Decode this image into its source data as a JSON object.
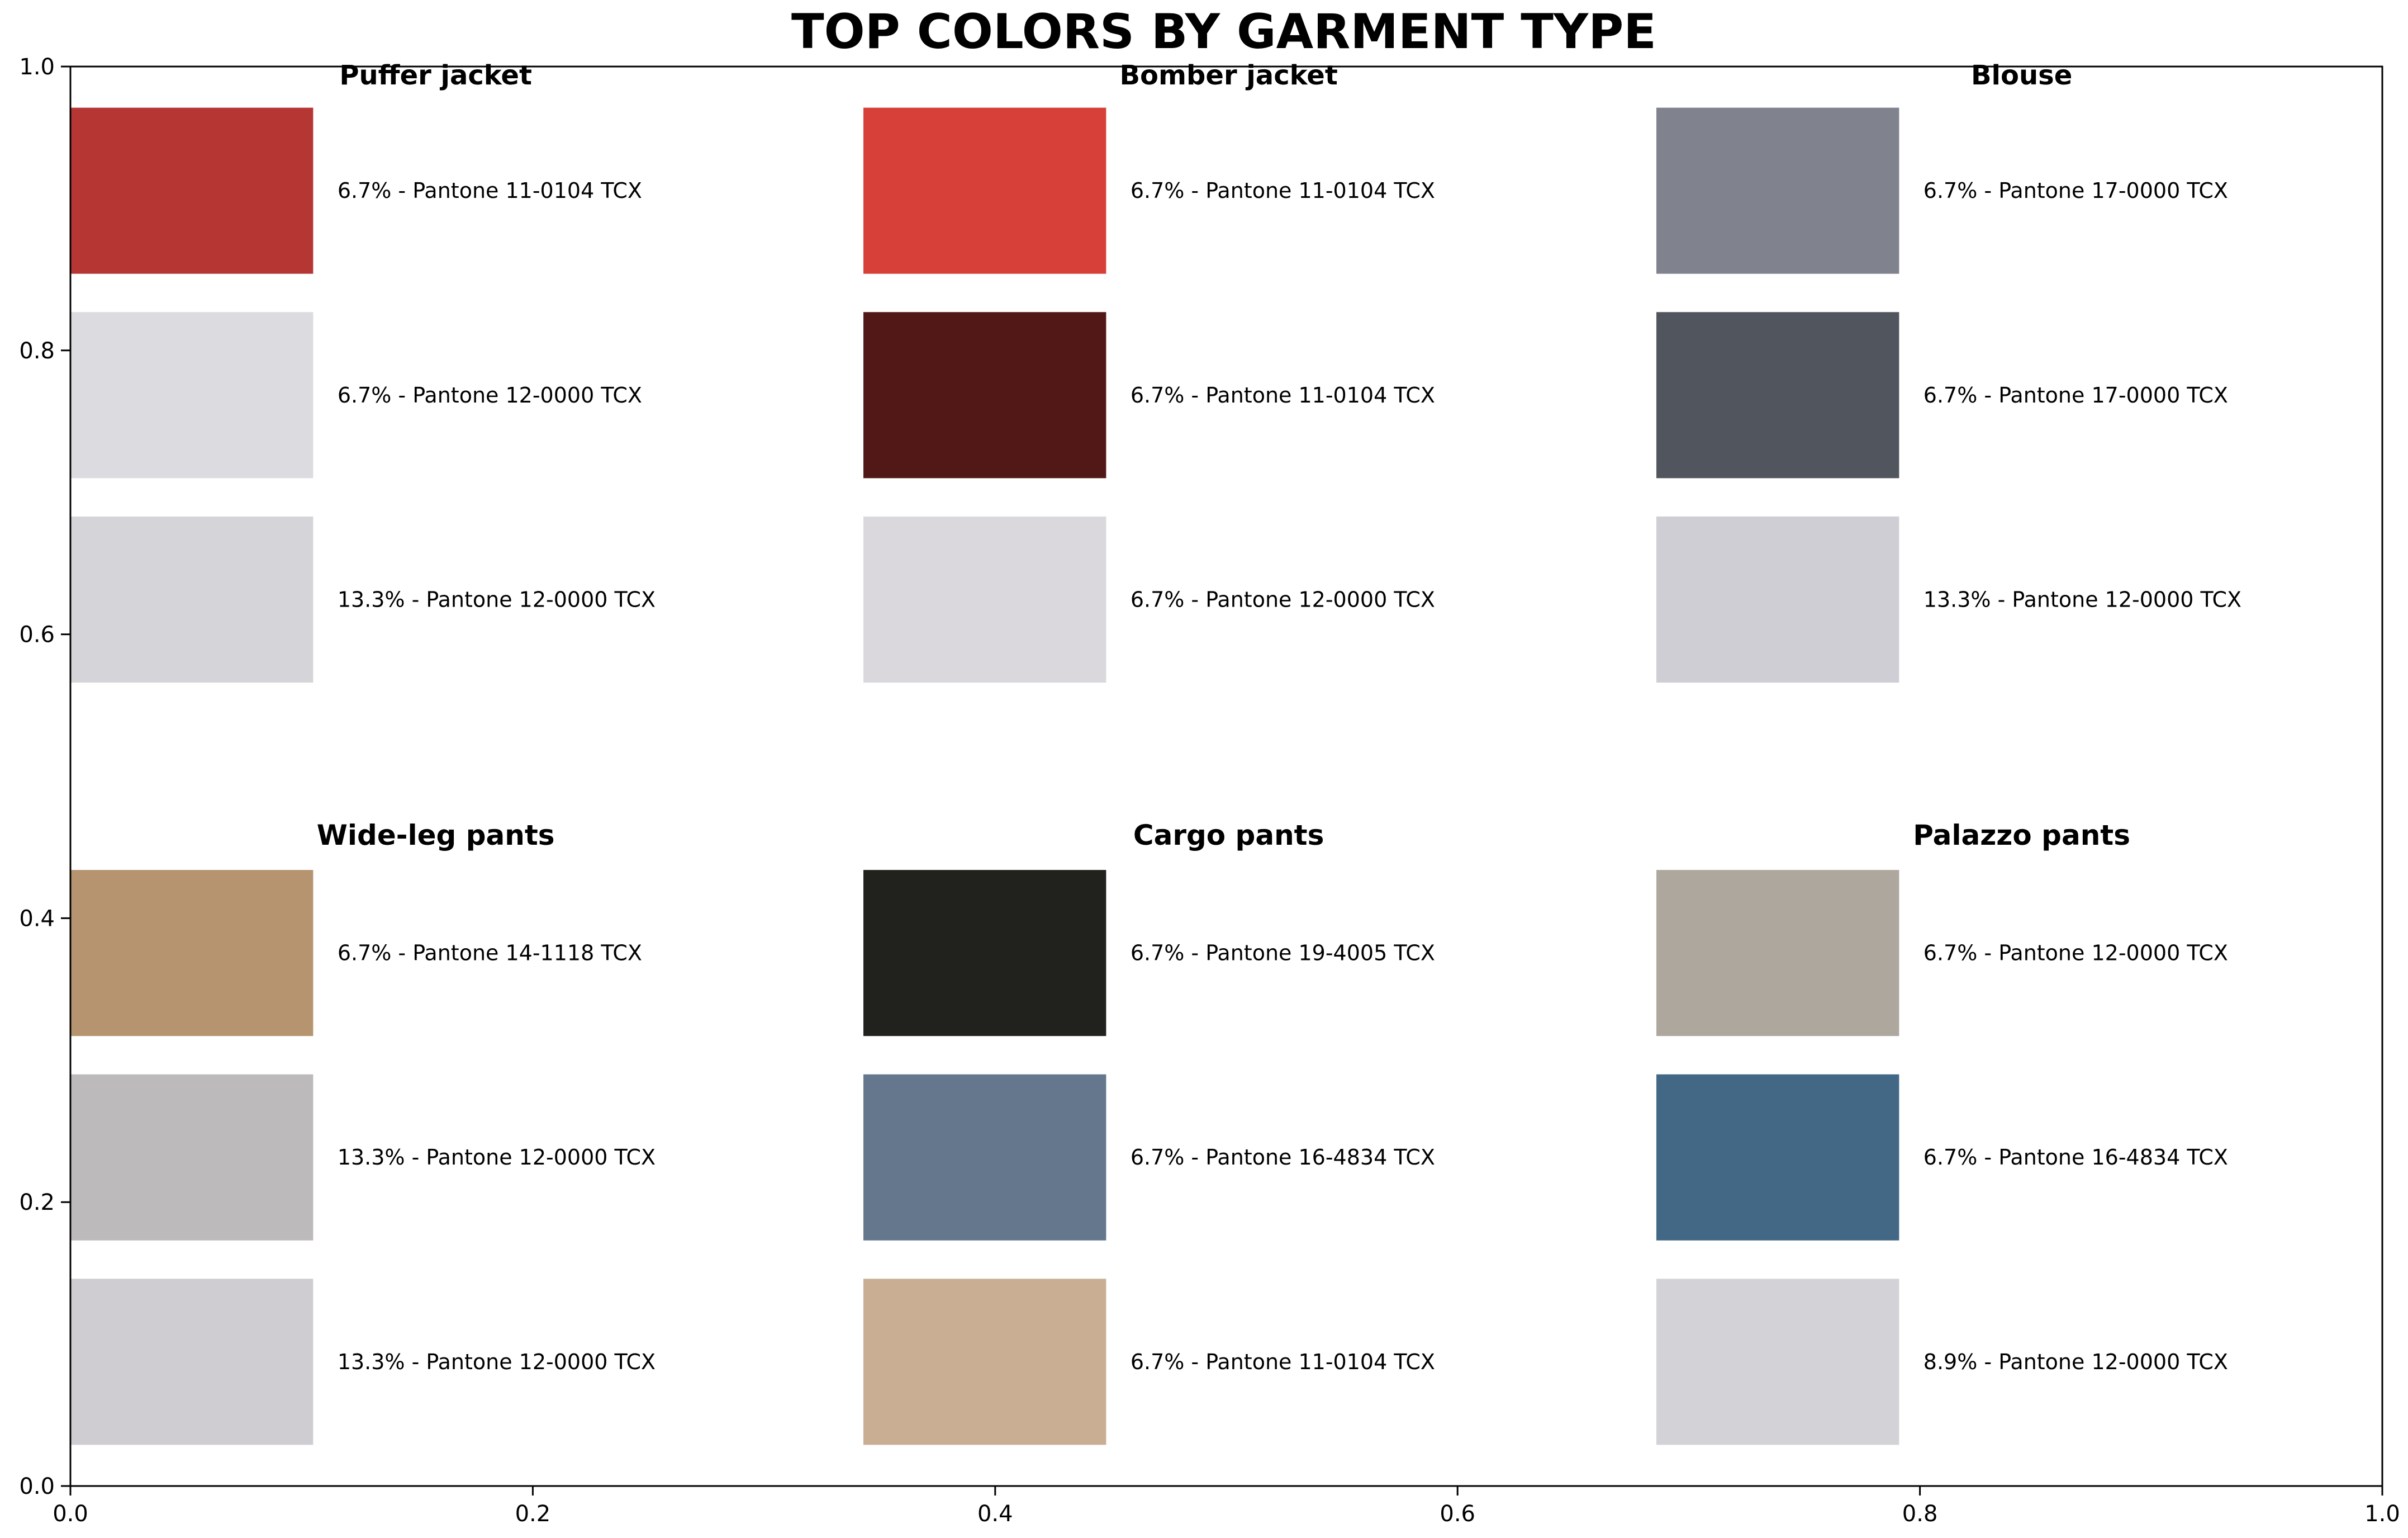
{
  "chart_data": {
    "type": "bar",
    "title": "TOP COLORS BY GARMENT TYPE",
    "xlim": [
      0,
      1
    ],
    "ylim": [
      0,
      1
    ],
    "xticks": [
      "0.0",
      "0.2",
      "0.4",
      "0.6",
      "0.8",
      "1.0"
    ],
    "yticks": [
      "0.0",
      "0.2",
      "0.4",
      "0.6",
      "0.8",
      "1.0"
    ],
    "grid": false,
    "panels": [
      {
        "name": "Puffer jacket",
        "swatches": [
          {
            "color": "#b53633",
            "label": "6.7% - Pantone 11-0104 TCX"
          },
          {
            "color": "#dcdbdf",
            "label": "6.7% - Pantone 12-0000 TCX"
          },
          {
            "color": "#d5d4d8",
            "label": "13.3% - Pantone 12-0000 TCX"
          }
        ]
      },
      {
        "name": "Bomber jacket",
        "swatches": [
          {
            "color": "#d64038",
            "label": "6.7% - Pantone 11-0104 TCX"
          },
          {
            "color": "#521818",
            "label": "6.7% - Pantone 11-0104 TCX"
          },
          {
            "color": "#dad8dd",
            "label": "6.7% - Pantone 12-0000 TCX"
          }
        ]
      },
      {
        "name": "Blouse",
        "swatches": [
          {
            "color": "#80828d",
            "label": "6.7% - Pantone 17-0000 TCX"
          },
          {
            "color": "#51555d",
            "label": "6.7% - Pantone 17-0000 TCX"
          },
          {
            "color": "#cfced4",
            "label": "13.3% - Pantone 12-0000 TCX"
          }
        ]
      },
      {
        "name": "Wide-leg pants",
        "swatches": [
          {
            "color": "#b6946f",
            "label": "6.7% - Pantone 14-1118 TCX"
          },
          {
            "color": "#bcbaba",
            "label": "13.3% - Pantone 12-0000 TCX"
          },
          {
            "color": "#cfcdd1",
            "label": "13.3% - Pantone 12-0000 TCX"
          }
        ]
      },
      {
        "name": "Cargo pants",
        "swatches": [
          {
            "color": "#21221e",
            "label": "6.7% - Pantone 19-4005 TCX"
          },
          {
            "color": "#65778c",
            "label": "6.7% - Pantone 16-4834 TCX"
          },
          {
            "color": "#c9ae94",
            "label": "6.7% - Pantone 11-0104 TCX"
          }
        ]
      },
      {
        "name": "Palazzo pants",
        "swatches": [
          {
            "color": "#aea79d",
            "label": "6.7% - Pantone 12-0000 TCX"
          },
          {
            "color": "#436885",
            "label": "6.7% - Pantone 16-4834 TCX"
          },
          {
            "color": "#d3d2d6",
            "label": "8.9% - Pantone 12-0000 TCX"
          }
        ]
      }
    ]
  }
}
